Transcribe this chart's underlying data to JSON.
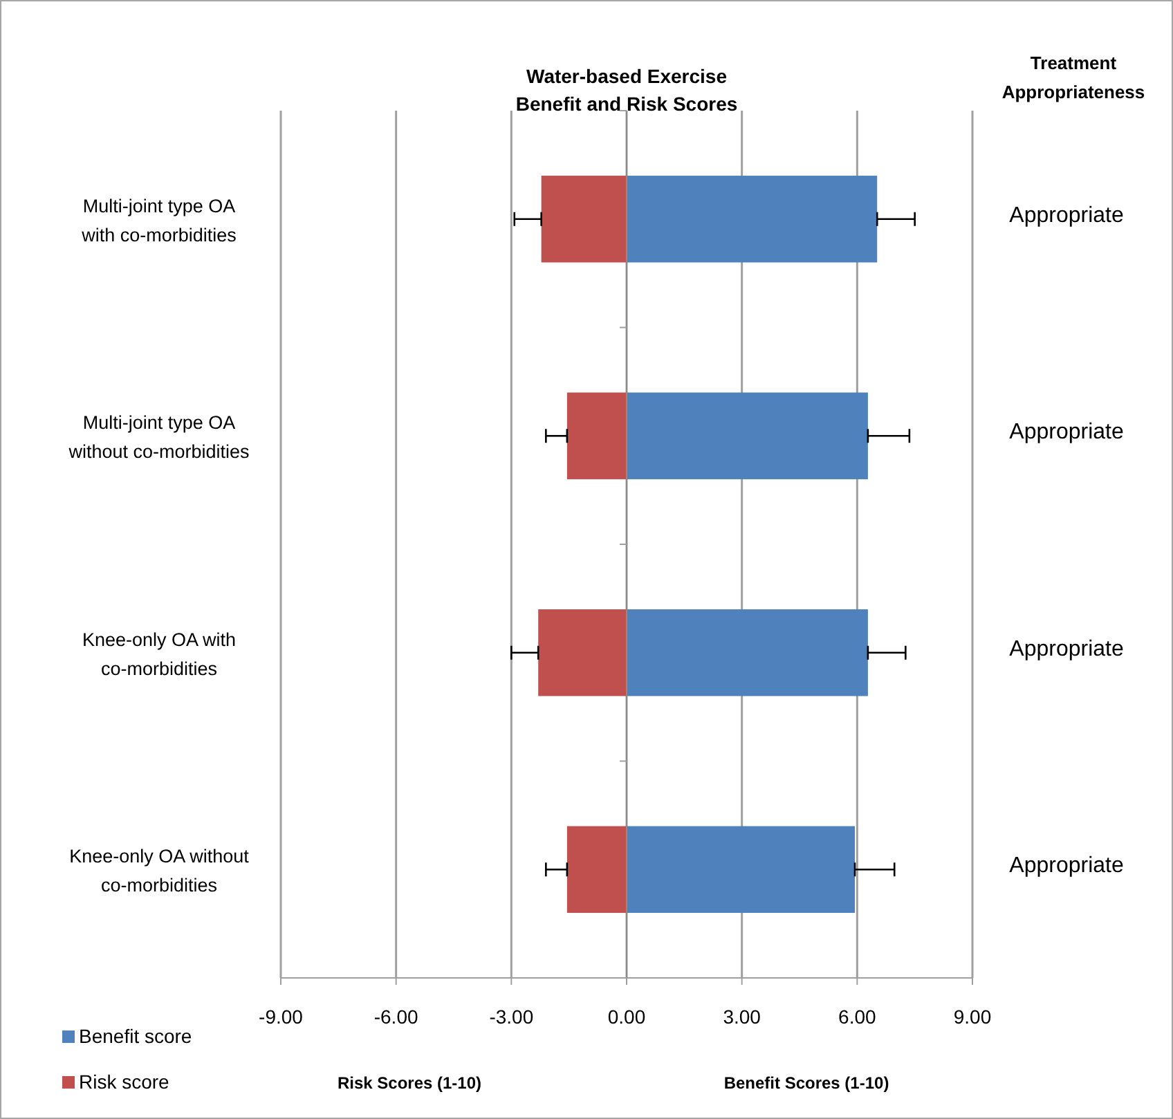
{
  "chart_data": {
    "type": "bar",
    "orientation": "horizontal",
    "stacked": true,
    "title": "Water-based Exercise\nBenefit and Risk Scores",
    "categories": [
      "Multi-joint type OA with co-morbidities",
      "Multi-joint type OA without co-morbidities",
      "Knee-only OA with co-morbidities",
      "Knee-only OA without co-morbidities"
    ],
    "series": [
      {
        "name": "Benefit score",
        "color": "#4f81bd",
        "values": [
          6.52,
          6.28,
          6.28,
          5.94
        ],
        "errors": [
          [
            6.52,
            7.5
          ],
          [
            6.28,
            7.36
          ],
          [
            6.28,
            7.26
          ],
          [
            5.94,
            6.97
          ]
        ]
      },
      {
        "name": "Risk score",
        "color": "#c0504d",
        "values": [
          -2.22,
          -1.55,
          -2.3,
          -1.55
        ],
        "errors": [
          [
            -2.92,
            -2.22
          ],
          [
            -2.1,
            -1.55
          ],
          [
            -3.0,
            -2.3
          ],
          [
            -2.1,
            -1.55
          ]
        ]
      }
    ],
    "xlim": [
      -9,
      9
    ],
    "xticks": [
      {
        "value": -9,
        "label": "-9.00"
      },
      {
        "value": -6,
        "label": "-6.00"
      },
      {
        "value": -3,
        "label": "-3.00"
      },
      {
        "value": 0,
        "label": "0.00"
      },
      {
        "value": 3,
        "label": "3.00"
      },
      {
        "value": 6,
        "label": "6.00"
      },
      {
        "value": 9,
        "label": "9.00"
      }
    ],
    "grid": "x",
    "legend": "bottom left",
    "annotations": [
      "Risk  Scores (1-10)",
      "Benefit Scores (1-10)",
      "Treatment\nAppropriateness",
      "Appropriate",
      "Appropriate",
      "Appropriate",
      "Appropriate"
    ]
  }
}
